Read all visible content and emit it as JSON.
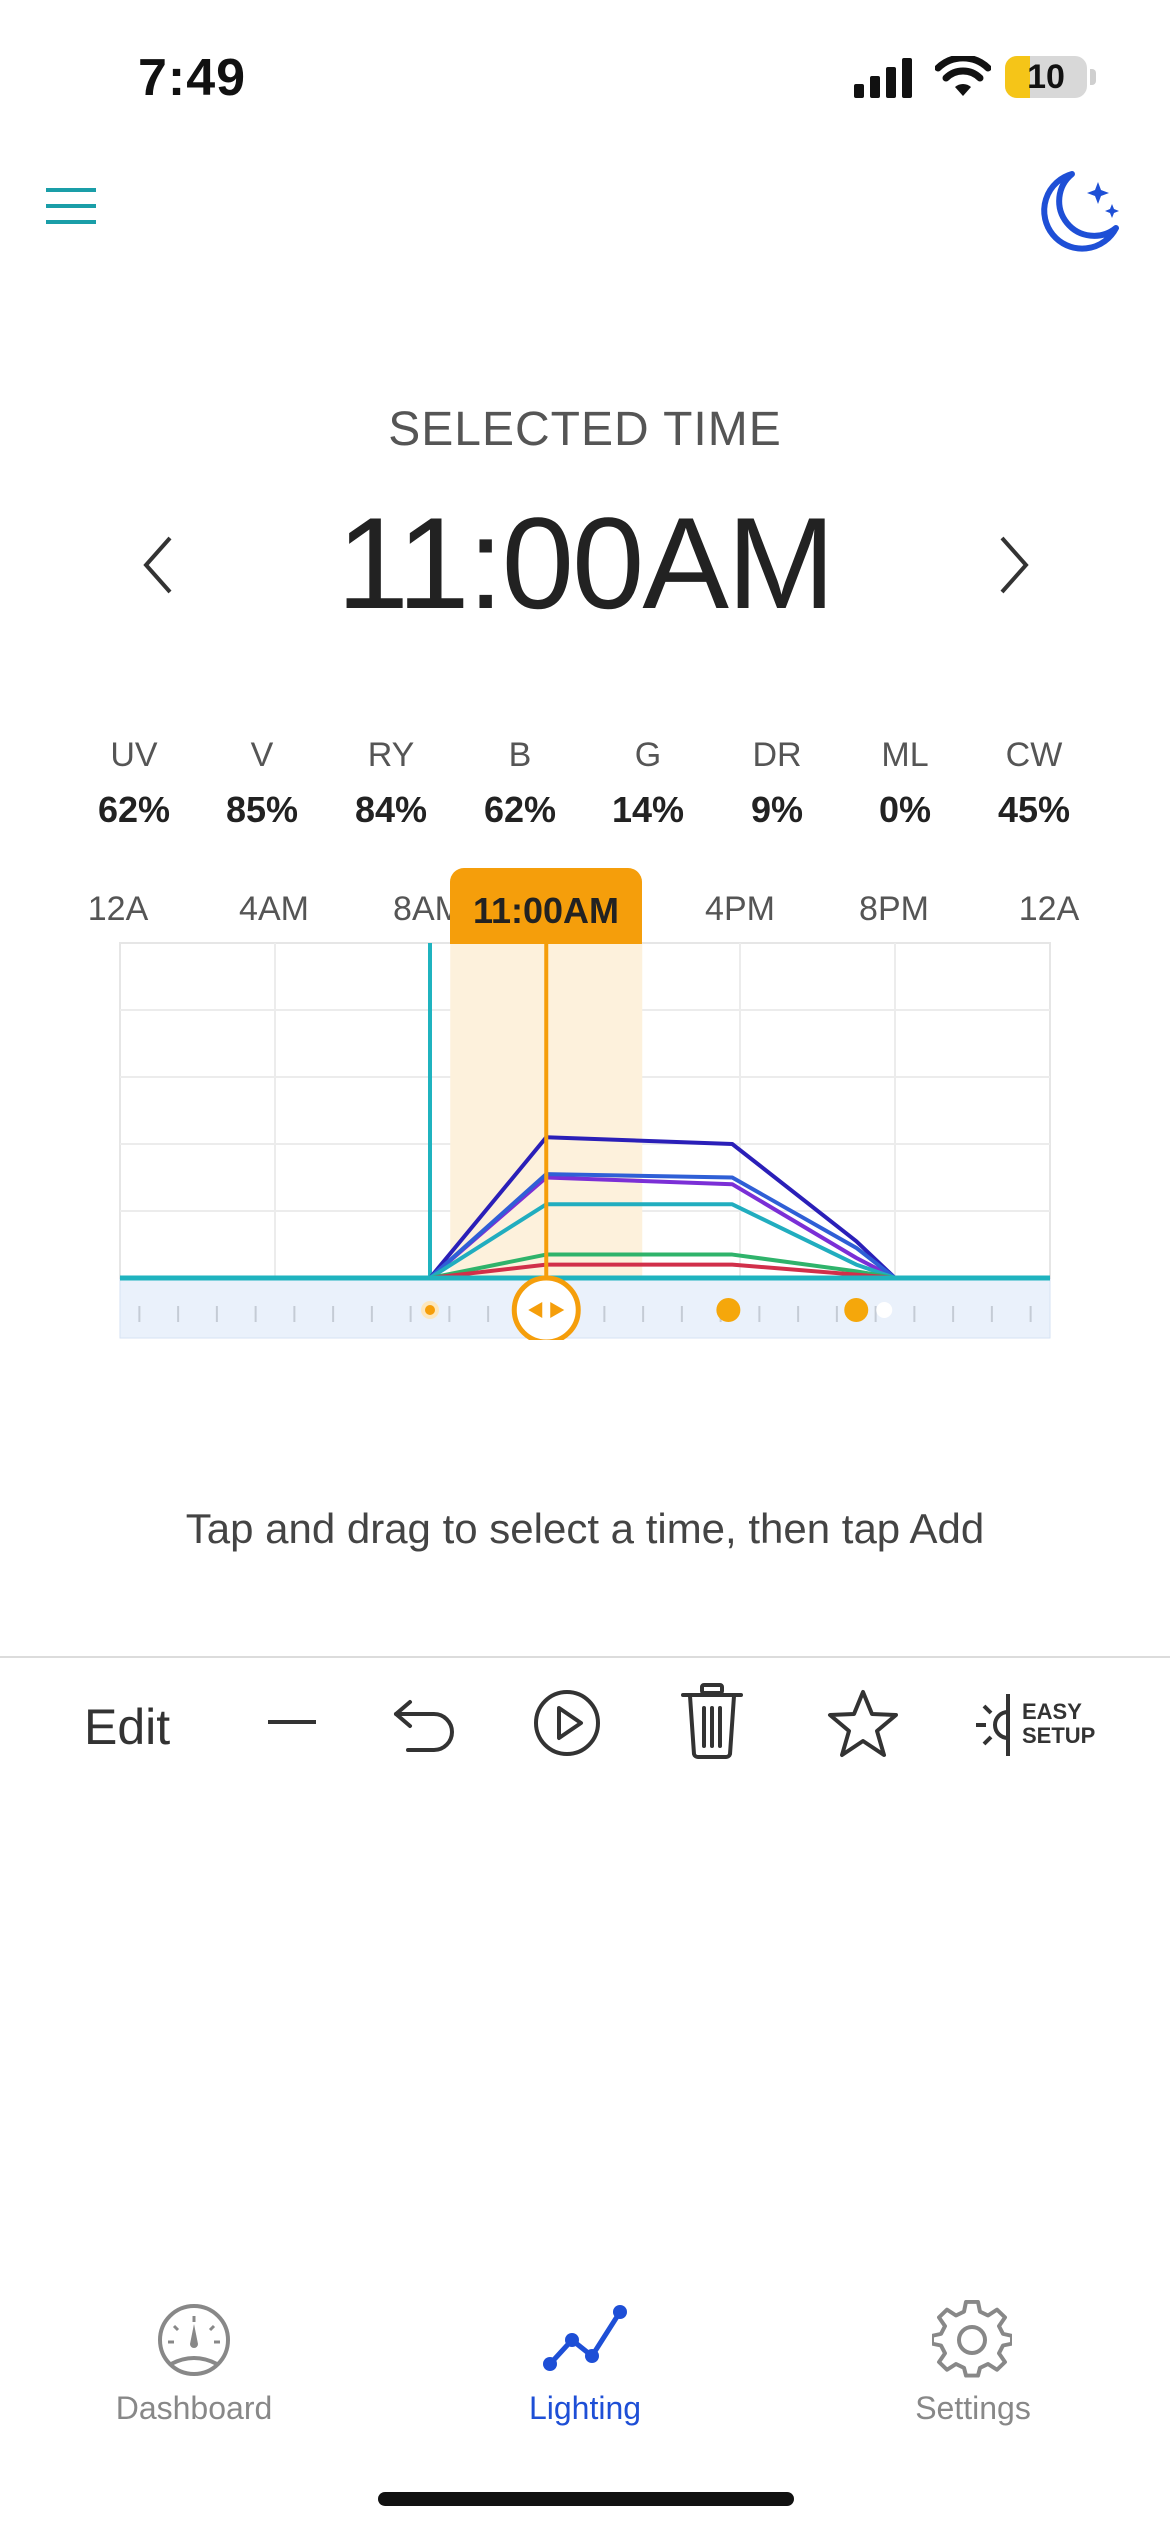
{
  "status_bar": {
    "time": "7:49",
    "battery": "10",
    "battery_level": 0.3
  },
  "header": {
    "menu_icon": "hamburger-menu-icon",
    "mode_icon": "moon-stars-icon"
  },
  "selected": {
    "label": "SELECTED TIME",
    "time": "11:00AM"
  },
  "channels": [
    {
      "name": "UV",
      "value": "62%"
    },
    {
      "name": "V",
      "value": "85%"
    },
    {
      "name": "RY",
      "value": "84%"
    },
    {
      "name": "B",
      "value": "62%"
    },
    {
      "name": "G",
      "value": "14%"
    },
    {
      "name": "DR",
      "value": "9%"
    },
    {
      "name": "ML",
      "value": "0%"
    },
    {
      "name": "CW",
      "value": "45%"
    }
  ],
  "chart_data": {
    "type": "line",
    "x_ticks": [
      "12A",
      "4AM",
      "8AM",
      "4PM",
      "8PM",
      "12A"
    ],
    "selected_label": "11:00AM",
    "xlim": [
      0,
      24
    ],
    "ylim": [
      0,
      100
    ],
    "selected_hour": 11,
    "series": [
      {
        "color": "#2a1fb8",
        "points": [
          [
            0,
            0
          ],
          [
            8,
            0
          ],
          [
            11,
            42
          ],
          [
            15.8,
            40
          ],
          [
            19,
            11
          ],
          [
            20,
            0
          ],
          [
            24,
            0
          ]
        ]
      },
      {
        "color": "#7b2fd6",
        "points": [
          [
            0,
            0
          ],
          [
            8,
            0
          ],
          [
            11,
            30
          ],
          [
            15.8,
            28
          ],
          [
            19,
            6
          ],
          [
            20,
            0
          ],
          [
            24,
            0
          ]
        ]
      },
      {
        "color": "#2f5fd6",
        "points": [
          [
            0,
            0
          ],
          [
            8,
            0
          ],
          [
            11,
            31
          ],
          [
            15.8,
            30
          ],
          [
            19,
            9
          ],
          [
            20,
            0
          ],
          [
            24,
            0
          ]
        ]
      },
      {
        "color": "#21adbf",
        "points": [
          [
            0,
            0
          ],
          [
            8,
            0
          ],
          [
            11,
            22
          ],
          [
            15.8,
            22
          ],
          [
            19,
            4
          ],
          [
            20,
            0
          ],
          [
            24,
            0
          ]
        ]
      },
      {
        "color": "#2fb36b",
        "points": [
          [
            0,
            0
          ],
          [
            8,
            0
          ],
          [
            11,
            7
          ],
          [
            15.8,
            7
          ],
          [
            19,
            2
          ],
          [
            20,
            0
          ],
          [
            24,
            0
          ]
        ]
      },
      {
        "color": "#d12f4a",
        "points": [
          [
            0,
            0
          ],
          [
            8,
            0
          ],
          [
            11,
            4
          ],
          [
            15.8,
            4
          ],
          [
            19,
            1
          ],
          [
            20,
            0
          ],
          [
            24,
            0
          ]
        ]
      }
    ],
    "markers_hours": [
      8,
      15.7,
      19
    ]
  },
  "hint": "Tap and drag to select a time, then tap Add",
  "toolbar": {
    "edit_label": "Edit",
    "easy_setup_line1": "EASY",
    "easy_setup_line2": "SETUP"
  },
  "nav": [
    {
      "label": "Dashboard",
      "icon": "gauge-icon"
    },
    {
      "label": "Lighting",
      "icon": "line-graph-icon"
    },
    {
      "label": "Settings",
      "icon": "gear-icon"
    }
  ]
}
